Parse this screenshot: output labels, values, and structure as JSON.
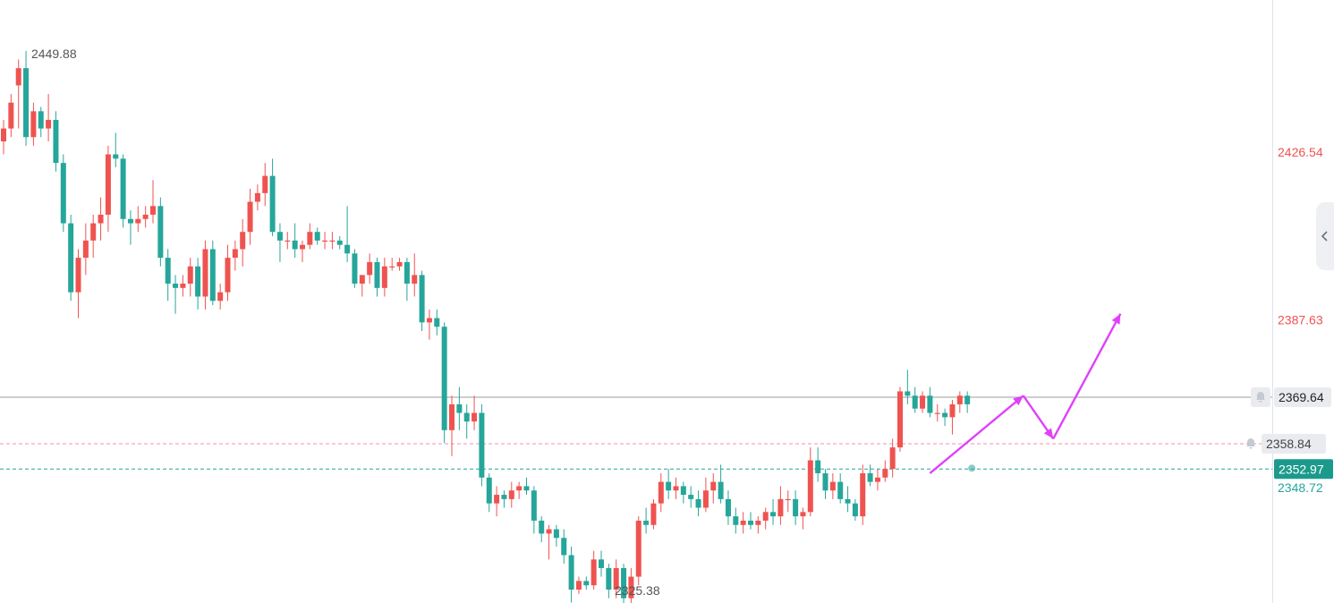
{
  "colors": {
    "up": "#ef5350",
    "down": "#26a69a",
    "up_text": "#ef5350",
    "down_text": "#26a69a",
    "hline": "#bdbdbd",
    "alert_line": "#f48fb1",
    "price_line": "#26a69a",
    "arrow": "#e040fb",
    "pill_bg": "#e9ebef",
    "price_pill_bg": "#1b9a8c"
  },
  "price_axis": {
    "labels": [
      {
        "text": "2426.54",
        "value": 2426.54,
        "color": "up_text"
      },
      {
        "text": "2387.63",
        "value": 2387.63,
        "color": "up_text"
      },
      {
        "text": "2348.72",
        "value": 2348.72,
        "color": "down_text"
      }
    ],
    "hline_label": "2369.64",
    "alert_label": "2358.84",
    "last_price_label": "2352.97"
  },
  "annotations": {
    "high_label": "2449.88",
    "low_label": "2325.38"
  },
  "icons": {
    "alert": "bell-icon",
    "collapse": "chevron-left-icon"
  },
  "chart_data": {
    "type": "candlestick",
    "title": "",
    "ylim": [
      2320,
      2455
    ],
    "high": 2449.88,
    "low": 2325.38,
    "horizontal_line": 2369.64,
    "alert_level": 2358.84,
    "last_price": 2352.97,
    "candles": [
      [
        2429,
        2434,
        2426,
        2432
      ],
      [
        2432,
        2440,
        2430,
        2438
      ],
      [
        2442,
        2448,
        2432,
        2446
      ],
      [
        2446,
        2450,
        2428,
        2430
      ],
      [
        2430,
        2438,
        2428,
        2436
      ],
      [
        2436,
        2437,
        2430,
        2432
      ],
      [
        2432,
        2440,
        2429,
        2434
      ],
      [
        2434,
        2436,
        2422,
        2424
      ],
      [
        2424,
        2426,
        2408,
        2410
      ],
      [
        2410,
        2412,
        2392,
        2394
      ],
      [
        2394,
        2404,
        2388,
        2402
      ],
      [
        2402,
        2410,
        2398,
        2406
      ],
      [
        2406,
        2412,
        2402,
        2410
      ],
      [
        2410,
        2416,
        2406,
        2412
      ],
      [
        2412,
        2428,
        2408,
        2426
      ],
      [
        2426,
        2431,
        2423,
        2425
      ],
      [
        2425,
        2426,
        2409,
        2411
      ],
      [
        2411,
        2413,
        2405,
        2410
      ],
      [
        2410,
        2414,
        2408,
        2411
      ],
      [
        2411,
        2414,
        2409,
        2412
      ],
      [
        2412,
        2420,
        2410,
        2414
      ],
      [
        2414,
        2416,
        2400,
        2402
      ],
      [
        2402,
        2404,
        2392,
        2396
      ],
      [
        2396,
        2398,
        2389,
        2395
      ],
      [
        2395,
        2398,
        2393,
        2396
      ],
      [
        2396,
        2402,
        2393,
        2400
      ],
      [
        2400,
        2402,
        2390,
        2393
      ],
      [
        2393,
        2406,
        2390,
        2404
      ],
      [
        2404,
        2406,
        2391,
        2392
      ],
      [
        2392,
        2396,
        2390,
        2394
      ],
      [
        2394,
        2405,
        2392,
        2402
      ],
      [
        2402,
        2406,
        2399,
        2404
      ],
      [
        2404,
        2411,
        2400,
        2408
      ],
      [
        2408,
        2418,
        2405,
        2415
      ],
      [
        2415,
        2419,
        2413,
        2417
      ],
      [
        2417,
        2424,
        2414,
        2421
      ],
      [
        2421,
        2425,
        2407,
        2408
      ],
      [
        2408,
        2410,
        2401,
        2406
      ],
      [
        2406,
        2408,
        2404,
        2406
      ],
      [
        2406,
        2410,
        2402,
        2404
      ],
      [
        2404,
        2406,
        2401,
        2405
      ],
      [
        2405,
        2410,
        2404,
        2408
      ],
      [
        2408,
        2409,
        2405,
        2406
      ],
      [
        2406,
        2408,
        2404,
        2406
      ],
      [
        2406,
        2408,
        2404,
        2406
      ],
      [
        2406,
        2407,
        2404,
        2405
      ],
      [
        2405,
        2414,
        2401,
        2403
      ],
      [
        2403,
        2404,
        2395,
        2396
      ],
      [
        2396,
        2398,
        2393,
        2398
      ],
      [
        2398,
        2403,
        2396,
        2401
      ],
      [
        2401,
        2402,
        2393,
        2395
      ],
      [
        2395,
        2402,
        2393,
        2400
      ],
      [
        2400,
        2402,
        2399,
        2400
      ],
      [
        2400,
        2402,
        2399,
        2401
      ],
      [
        2401,
        2402,
        2392,
        2396
      ],
      [
        2396,
        2403,
        2393,
        2398
      ],
      [
        2398,
        2399,
        2385,
        2387
      ],
      [
        2387,
        2390,
        2383,
        2388
      ],
      [
        2388,
        2390,
        2384,
        2386
      ],
      [
        2386,
        2387,
        2359,
        2362
      ],
      [
        2362,
        2370,
        2356,
        2368
      ],
      [
        2368,
        2372,
        2362,
        2366
      ],
      [
        2366,
        2368,
        2360,
        2364
      ],
      [
        2364,
        2370,
        2362,
        2366
      ],
      [
        2366,
        2368,
        2349,
        2351
      ],
      [
        2351,
        2352,
        2343,
        2345
      ],
      [
        2345,
        2349,
        2342,
        2347
      ],
      [
        2347,
        2348,
        2344,
        2346
      ],
      [
        2346,
        2350,
        2344,
        2348
      ],
      [
        2348,
        2350,
        2346,
        2349
      ],
      [
        2349,
        2351,
        2347,
        2348
      ],
      [
        2348,
        2349,
        2338,
        2341
      ],
      [
        2341,
        2342,
        2336,
        2338
      ],
      [
        2338,
        2340,
        2332,
        2339
      ],
      [
        2339,
        2340,
        2335,
        2337
      ],
      [
        2337,
        2339,
        2331,
        2333
      ],
      [
        2333,
        2335,
        2322,
        2325
      ],
      [
        2325,
        2328,
        2324,
        2327
      ],
      [
        2327,
        2328,
        2325,
        2326
      ],
      [
        2326,
        2334,
        2325,
        2332
      ],
      [
        2332,
        2334,
        2328,
        2330
      ],
      [
        2330,
        2331,
        2323,
        2325
      ],
      [
        2325,
        2332,
        2323,
        2330
      ],
      [
        2330,
        2331,
        2321,
        2323
      ],
      [
        2323,
        2330,
        2321,
        2328
      ],
      [
        2328,
        2342,
        2326,
        2341
      ],
      [
        2341,
        2344,
        2338,
        2340
      ],
      [
        2340,
        2346,
        2339,
        2345
      ],
      [
        2345,
        2352,
        2343,
        2350
      ],
      [
        2350,
        2353,
        2346,
        2348
      ],
      [
        2348,
        2351,
        2346,
        2349
      ],
      [
        2349,
        2350,
        2345,
        2347
      ],
      [
        2347,
        2349,
        2344,
        2346
      ],
      [
        2346,
        2348,
        2342,
        2344
      ],
      [
        2344,
        2351,
        2343,
        2348
      ],
      [
        2348,
        2352,
        2345,
        2350
      ],
      [
        2350,
        2354,
        2345,
        2346
      ],
      [
        2346,
        2348,
        2340,
        2342
      ],
      [
        2342,
        2344,
        2338,
        2340
      ],
      [
        2340,
        2343,
        2338,
        2341
      ],
      [
        2341,
        2343,
        2339,
        2340
      ],
      [
        2340,
        2342,
        2338,
        2341
      ],
      [
        2341,
        2344,
        2339,
        2343
      ],
      [
        2343,
        2346,
        2340,
        2342
      ],
      [
        2342,
        2349,
        2340,
        2346
      ],
      [
        2346,
        2348,
        2343,
        2346
      ],
      [
        2346,
        2348,
        2340,
        2342
      ],
      [
        2342,
        2344,
        2339,
        2343
      ],
      [
        2343,
        2358,
        2342,
        2355
      ],
      [
        2355,
        2358,
        2350,
        2352
      ],
      [
        2352,
        2353,
        2346,
        2348
      ],
      [
        2348,
        2352,
        2346,
        2350
      ],
      [
        2350,
        2352,
        2345,
        2346
      ],
      [
        2346,
        2349,
        2343,
        2345
      ],
      [
        2345,
        2346,
        2341,
        2342
      ],
      [
        2342,
        2354,
        2340,
        2352
      ],
      [
        2352,
        2354,
        2349,
        2350
      ],
      [
        2350,
        2353,
        2348,
        2351
      ],
      [
        2351,
        2355,
        2350,
        2353
      ],
      [
        2353,
        2360,
        2351,
        2358
      ],
      [
        2358,
        2372,
        2357,
        2371
      ],
      [
        2371,
        2376,
        2368,
        2370
      ],
      [
        2370,
        2372,
        2366,
        2367
      ],
      [
        2367,
        2371,
        2366,
        2370
      ],
      [
        2370,
        2372,
        2365,
        2366
      ],
      [
        2366,
        2368,
        2364,
        2366
      ],
      [
        2366,
        2367,
        2363,
        2365
      ],
      [
        2365,
        2369,
        2361,
        2368
      ],
      [
        2368,
        2371,
        2366,
        2370
      ],
      [
        2370,
        2371,
        2366,
        2368
      ]
    ],
    "projection_path": [
      {
        "candle": 124.0,
        "price": 2352
      },
      {
        "candle": 136.5,
        "price": 2370
      },
      {
        "candle": 140.5,
        "price": 2360
      },
      {
        "candle": 149.5,
        "price": 2389
      }
    ]
  }
}
